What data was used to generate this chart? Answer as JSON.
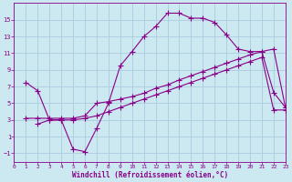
{
  "xlabel": "Windchill (Refroidissement éolien,°C)",
  "bg_color": "#cce8f0",
  "grid_color": "#aaccdd",
  "line_color": "#880088",
  "ylim": [
    -2,
    17
  ],
  "xlim": [
    0,
    23
  ],
  "yticks": [
    -1,
    1,
    3,
    5,
    7,
    9,
    11,
    13,
    15
  ],
  "xticks": [
    0,
    1,
    2,
    3,
    4,
    5,
    6,
    7,
    8,
    9,
    10,
    11,
    12,
    13,
    14,
    15,
    16,
    17,
    18,
    19,
    20,
    21,
    22,
    23
  ],
  "line1_x": [
    1,
    2,
    3,
    4,
    5,
    6,
    7,
    8,
    9,
    10,
    11,
    12,
    13,
    14,
    15,
    16,
    17,
    18,
    19,
    20,
    21,
    22,
    23
  ],
  "line1_y": [
    7.5,
    6.5,
    3.0,
    3.0,
    -0.5,
    -0.8,
    2.0,
    5.0,
    9.5,
    11.2,
    13.0,
    14.2,
    15.8,
    15.8,
    15.2,
    15.2,
    14.7,
    13.2,
    11.5,
    11.2,
    11.2,
    6.3,
    4.5
  ],
  "line2_x": [
    1,
    2,
    3,
    4,
    5,
    6,
    7,
    8,
    9,
    10,
    11,
    12,
    13,
    14,
    15,
    16,
    17,
    18,
    19,
    20,
    21,
    22,
    23
  ],
  "line2_y": [
    3.2,
    3.2,
    3.2,
    3.2,
    3.2,
    3.5,
    5.0,
    5.2,
    5.5,
    5.8,
    6.2,
    6.8,
    7.2,
    7.8,
    8.3,
    8.8,
    9.3,
    9.8,
    10.3,
    10.8,
    11.2,
    11.5,
    4.5
  ],
  "line3_x": [
    2,
    3,
    4,
    5,
    6,
    7,
    8,
    9,
    10,
    11,
    12,
    13,
    14,
    15,
    16,
    17,
    18,
    19,
    20,
    21,
    22,
    23
  ],
  "line3_y": [
    2.5,
    3.0,
    3.0,
    3.0,
    3.2,
    3.5,
    4.0,
    4.5,
    5.0,
    5.5,
    6.0,
    6.5,
    7.0,
    7.5,
    8.0,
    8.5,
    9.0,
    9.5,
    10.0,
    10.5,
    4.2,
    4.2
  ]
}
